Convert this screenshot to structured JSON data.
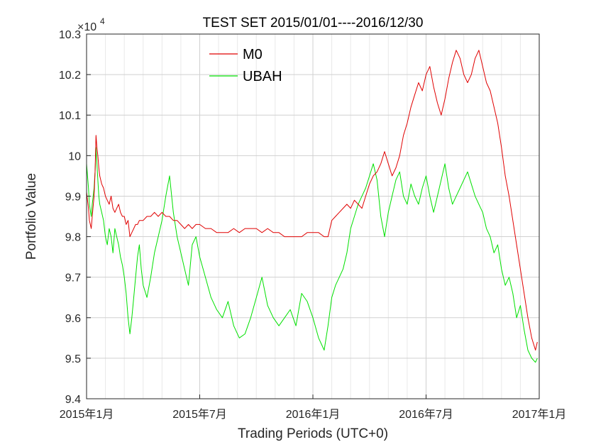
{
  "chart_data": {
    "type": "line",
    "title": "TEST SET 2015/01/01----2016/12/30",
    "xlabel": "Trading Periods (UTC+0)",
    "ylabel": "Portfolio Value",
    "y_multiplier_label": "×10",
    "y_multiplier_exponent": "4",
    "x_unit": "months since 2015年1月",
    "xlim": [
      0,
      24
    ],
    "ylim": [
      9.4,
      10.3
    ],
    "x_ticks": [
      {
        "value": 0,
        "label": "2015年1月"
      },
      {
        "value": 6,
        "label": "2015年7月"
      },
      {
        "value": 12,
        "label": "2016年1月"
      },
      {
        "value": 18,
        "label": "2016年7月"
      },
      {
        "value": 24,
        "label": "2017年1月"
      }
    ],
    "y_ticks": [
      {
        "value": 9.4,
        "label": "9.4"
      },
      {
        "value": 9.5,
        "label": "9.5"
      },
      {
        "value": 9.6,
        "label": "9.6"
      },
      {
        "value": 9.7,
        "label": "9.7"
      },
      {
        "value": 9.8,
        "label": "9.8"
      },
      {
        "value": 9.9,
        "label": "9.9"
      },
      {
        "value": 10.0,
        "label": "10"
      },
      {
        "value": 10.1,
        "label": "10.1"
      },
      {
        "value": 10.2,
        "label": "10.2"
      },
      {
        "value": 10.3,
        "label": "10.3"
      }
    ],
    "grid": true,
    "legend_position": "top-center",
    "series": [
      {
        "name": "M0",
        "color": "#e00000",
        "x": [
          0,
          0.1,
          0.15,
          0.25,
          0.3,
          0.4,
          0.45,
          0.5,
          0.55,
          0.6,
          0.65,
          0.7,
          0.8,
          0.9,
          1.0,
          1.1,
          1.2,
          1.3,
          1.4,
          1.5,
          1.6,
          1.7,
          1.8,
          1.9,
          2.0,
          2.1,
          2.2,
          2.3,
          2.4,
          2.5,
          2.6,
          2.7,
          2.8,
          2.9,
          3.0,
          3.2,
          3.4,
          3.6,
          3.8,
          4.0,
          4.2,
          4.4,
          4.6,
          4.8,
          5.0,
          5.2,
          5.4,
          5.6,
          5.8,
          6.0,
          6.3,
          6.6,
          6.9,
          7.2,
          7.5,
          7.8,
          8.1,
          8.4,
          8.7,
          9.0,
          9.3,
          9.6,
          9.9,
          10.2,
          10.5,
          10.8,
          11.1,
          11.4,
          11.7,
          12.0,
          12.3,
          12.6,
          12.8,
          13.0,
          13.2,
          13.4,
          13.6,
          13.8,
          14.0,
          14.2,
          14.4,
          14.6,
          14.8,
          15.0,
          15.2,
          15.4,
          15.6,
          15.8,
          16.0,
          16.2,
          16.4,
          16.6,
          16.8,
          17.0,
          17.2,
          17.4,
          17.6,
          17.8,
          18.0,
          18.2,
          18.4,
          18.6,
          18.8,
          19.0,
          19.2,
          19.4,
          19.6,
          19.8,
          20.0,
          20.2,
          20.4,
          20.6,
          20.8,
          21.0,
          21.2,
          21.4,
          21.6,
          21.8,
          22.0,
          22.2,
          22.4,
          22.6,
          22.8,
          23.0,
          23.2,
          23.4,
          23.6,
          23.8,
          23.9
        ],
        "y": [
          9.91,
          9.87,
          9.84,
          9.82,
          9.85,
          9.9,
          9.96,
          10.05,
          10.02,
          10.0,
          9.97,
          9.95,
          9.93,
          9.92,
          9.9,
          9.89,
          9.88,
          9.9,
          9.87,
          9.86,
          9.87,
          9.88,
          9.86,
          9.85,
          9.85,
          9.83,
          9.84,
          9.8,
          9.81,
          9.82,
          9.83,
          9.83,
          9.84,
          9.84,
          9.84,
          9.85,
          9.85,
          9.86,
          9.85,
          9.86,
          9.85,
          9.85,
          9.84,
          9.84,
          9.83,
          9.82,
          9.83,
          9.82,
          9.83,
          9.83,
          9.82,
          9.82,
          9.81,
          9.81,
          9.81,
          9.82,
          9.81,
          9.82,
          9.82,
          9.82,
          9.81,
          9.82,
          9.81,
          9.81,
          9.8,
          9.8,
          9.8,
          9.8,
          9.81,
          9.81,
          9.81,
          9.8,
          9.8,
          9.84,
          9.85,
          9.86,
          9.87,
          9.88,
          9.87,
          9.89,
          9.88,
          9.87,
          9.9,
          9.93,
          9.95,
          9.96,
          9.98,
          10.01,
          9.98,
          9.95,
          9.97,
          10.0,
          10.05,
          10.08,
          10.12,
          10.15,
          10.18,
          10.16,
          10.2,
          10.22,
          10.17,
          10.13,
          10.1,
          10.14,
          10.19,
          10.23,
          10.26,
          10.24,
          10.2,
          10.18,
          10.2,
          10.24,
          10.26,
          10.22,
          10.18,
          10.16,
          10.12,
          10.08,
          10.02,
          9.95,
          9.9,
          9.84,
          9.78,
          9.72,
          9.66,
          9.6,
          9.55,
          9.52,
          9.54
        ]
      },
      {
        "name": "UBAH",
        "color": "#00e000",
        "x": [
          0,
          0.1,
          0.15,
          0.25,
          0.3,
          0.4,
          0.45,
          0.5,
          0.55,
          0.6,
          0.65,
          0.7,
          0.8,
          0.9,
          1.0,
          1.1,
          1.2,
          1.3,
          1.4,
          1.5,
          1.6,
          1.7,
          1.8,
          1.9,
          2.0,
          2.1,
          2.2,
          2.3,
          2.4,
          2.5,
          2.6,
          2.7,
          2.8,
          2.9,
          3.0,
          3.2,
          3.4,
          3.6,
          3.8,
          4.0,
          4.2,
          4.4,
          4.6,
          4.8,
          5.0,
          5.2,
          5.4,
          5.6,
          5.8,
          6.0,
          6.3,
          6.6,
          6.9,
          7.2,
          7.5,
          7.8,
          8.1,
          8.4,
          8.7,
          9.0,
          9.3,
          9.6,
          9.9,
          10.2,
          10.5,
          10.8,
          11.1,
          11.4,
          11.7,
          12.0,
          12.3,
          12.6,
          12.8,
          13.0,
          13.2,
          13.4,
          13.6,
          13.8,
          14.0,
          14.2,
          14.4,
          14.6,
          14.8,
          15.0,
          15.2,
          15.4,
          15.6,
          15.8,
          16.0,
          16.2,
          16.4,
          16.6,
          16.8,
          17.0,
          17.2,
          17.4,
          17.6,
          17.8,
          18.0,
          18.2,
          18.4,
          18.6,
          18.8,
          19.0,
          19.2,
          19.4,
          19.6,
          19.8,
          20.0,
          20.2,
          20.4,
          20.6,
          20.8,
          21.0,
          21.2,
          21.4,
          21.6,
          21.8,
          22.0,
          22.2,
          22.4,
          22.6,
          22.8,
          23.0,
          23.2,
          23.4,
          23.6,
          23.8,
          23.9
        ],
        "y": [
          9.98,
          9.92,
          9.88,
          9.85,
          9.88,
          9.92,
          9.96,
          10.02,
          9.98,
          9.94,
          9.9,
          9.88,
          9.86,
          9.84,
          9.8,
          9.78,
          9.82,
          9.8,
          9.76,
          9.82,
          9.8,
          9.78,
          9.75,
          9.73,
          9.7,
          9.66,
          9.6,
          9.56,
          9.6,
          9.65,
          9.7,
          9.75,
          9.78,
          9.72,
          9.68,
          9.65,
          9.7,
          9.76,
          9.8,
          9.84,
          9.9,
          9.95,
          9.86,
          9.8,
          9.76,
          9.72,
          9.68,
          9.78,
          9.8,
          9.75,
          9.7,
          9.65,
          9.62,
          9.6,
          9.64,
          9.58,
          9.55,
          9.56,
          9.6,
          9.65,
          9.7,
          9.63,
          9.6,
          9.58,
          9.6,
          9.62,
          9.58,
          9.66,
          9.64,
          9.6,
          9.55,
          9.52,
          9.58,
          9.65,
          9.68,
          9.7,
          9.72,
          9.76,
          9.82,
          9.85,
          9.88,
          9.9,
          9.92,
          9.95,
          9.98,
          9.94,
          9.85,
          9.8,
          9.86,
          9.9,
          9.94,
          9.96,
          9.9,
          9.88,
          9.93,
          9.9,
          9.88,
          9.92,
          9.95,
          9.9,
          9.86,
          9.9,
          9.94,
          9.98,
          9.92,
          9.88,
          9.9,
          9.92,
          9.94,
          9.96,
          9.93,
          9.9,
          9.88,
          9.86,
          9.82,
          9.8,
          9.76,
          9.78,
          9.72,
          9.68,
          9.7,
          9.66,
          9.6,
          9.63,
          9.57,
          9.52,
          9.5,
          9.49,
          9.5
        ]
      }
    ]
  }
}
